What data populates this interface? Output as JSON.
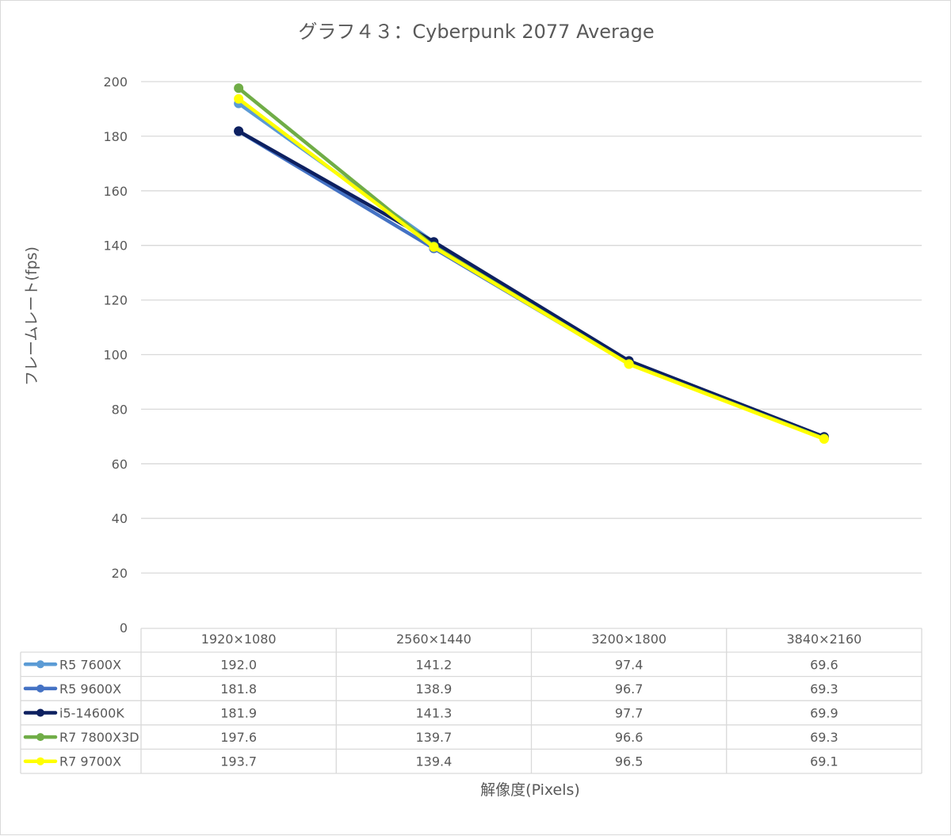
{
  "chart_data": {
    "type": "line",
    "title": "グラフ４３：Cyberpunk 2077 Average",
    "xlabel": "解像度(Pixels)",
    "ylabel": "フレームレート(fps)",
    "categories": [
      "1920×1080",
      "2560×1440",
      "3200×1800",
      "3840×2160"
    ],
    "ylim": [
      0,
      200
    ],
    "yticks": [
      "0",
      "20",
      "40",
      "60",
      "80",
      "100",
      "120",
      "140",
      "160",
      "180",
      "200"
    ],
    "grid": true,
    "legend": "data-table",
    "series": [
      {
        "name": "R5 7600X",
        "color": "#5b9bd5",
        "values": [
          192.0,
          141.2,
          97.4,
          69.6
        ],
        "labels": [
          "192.0",
          "141.2",
          "97.4",
          "69.6"
        ]
      },
      {
        "name": "R5 9600X",
        "color": "#4472c4",
        "values": [
          181.8,
          138.9,
          96.7,
          69.3
        ],
        "labels": [
          "181.8",
          "138.9",
          "96.7",
          "69.3"
        ]
      },
      {
        "name": "i5-14600K",
        "color": "#0d2060",
        "values": [
          181.9,
          141.3,
          97.7,
          69.9
        ],
        "labels": [
          "181.9",
          "141.3",
          "97.7",
          "69.9"
        ]
      },
      {
        "name": "R7 7800X3D",
        "color": "#70ad47",
        "values": [
          197.6,
          139.7,
          96.6,
          69.3
        ],
        "labels": [
          "197.6",
          "139.7",
          "96.6",
          "69.3"
        ]
      },
      {
        "name": "R7 9700X",
        "color": "#ffff00",
        "values": [
          193.7,
          139.4,
          96.5,
          69.1
        ],
        "labels": [
          "193.7",
          "139.4",
          "96.5",
          "69.1"
        ]
      }
    ]
  }
}
